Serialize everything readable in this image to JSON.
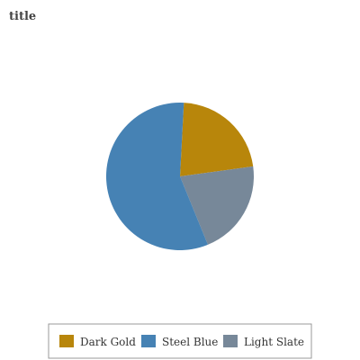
{
  "chart_data": {
    "type": "pie",
    "title": "title",
    "slices": [
      {
        "label": "Dark Gold",
        "value": 22,
        "color": "#b8860b"
      },
      {
        "label": "Steel Blue",
        "value": 57,
        "color": "#4682b4"
      },
      {
        "label": "Light Slate",
        "value": 21,
        "color": "#778899"
      }
    ],
    "legend": "bottom"
  }
}
